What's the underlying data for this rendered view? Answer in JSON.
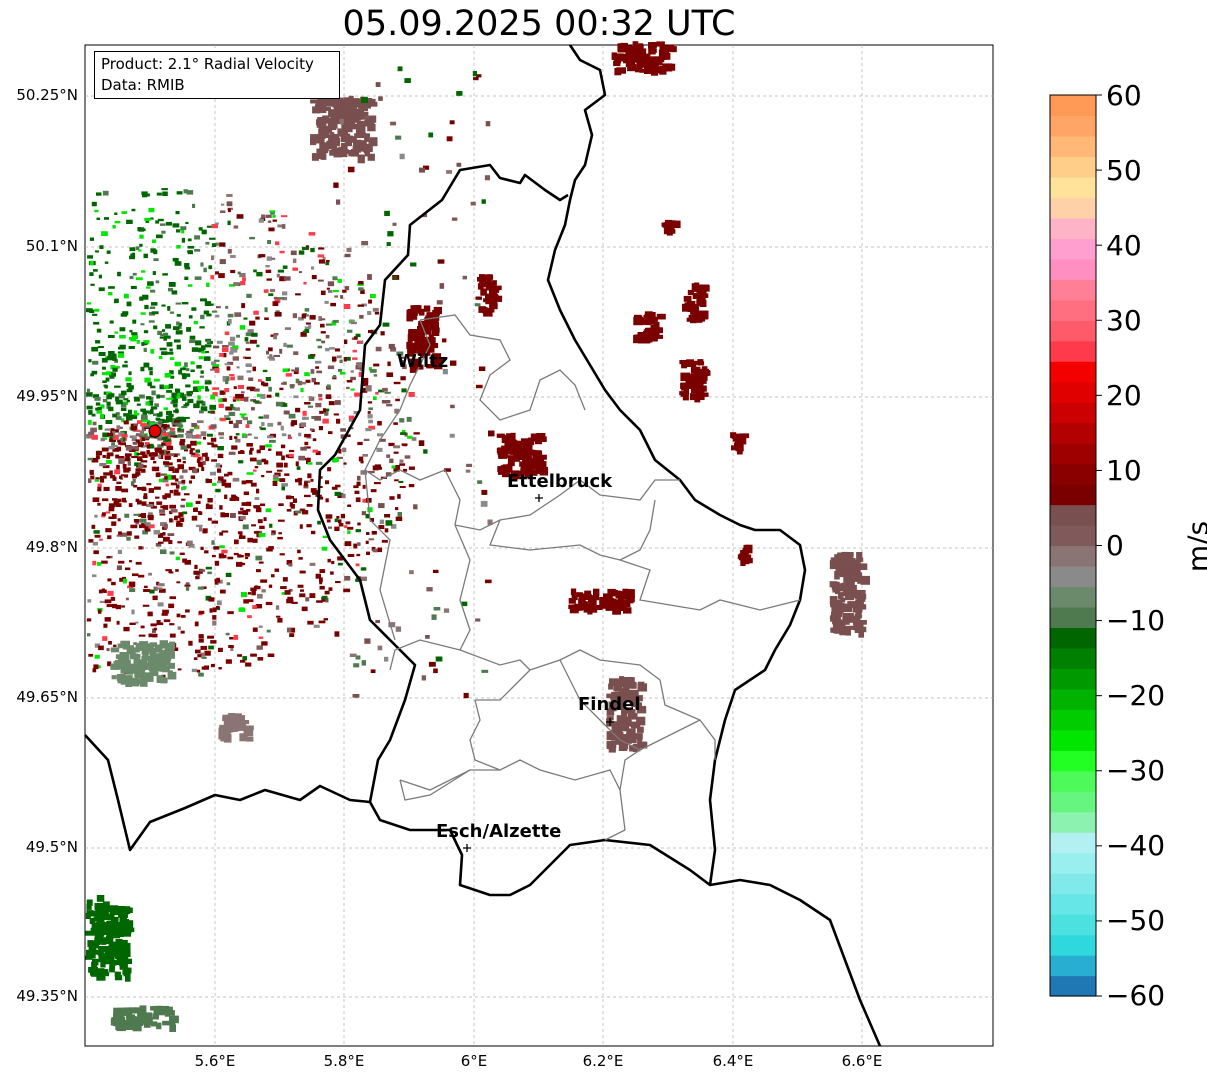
{
  "title": "05.09.2025 00:32 UTC",
  "info": {
    "product": "Product: 2.1° Radial Velocity",
    "source": "Data: RMIB"
  },
  "lat_ticks": [
    "50.25°N",
    "50.1°N",
    "49.95°N",
    "49.8°N",
    "49.65°N",
    "49.5°N",
    "49.35°N"
  ],
  "lon_ticks": [
    "5.6°E",
    "5.8°E",
    "6°E",
    "6.2°E",
    "6.4°E",
    "6.6°E"
  ],
  "cities": [
    {
      "name": "Wiltz",
      "marker": false
    },
    {
      "name": "Ettelbruck",
      "marker": true
    },
    {
      "name": "Findel",
      "marker": true
    },
    {
      "name": "Esch/Alzette",
      "marker": true
    }
  ],
  "colorbar": {
    "unit": "m/s",
    "ticks": [
      "60",
      "50",
      "40",
      "30",
      "20",
      "10",
      "0",
      "−10",
      "−20",
      "−30",
      "−40",
      "−50",
      "−60"
    ],
    "colors": [
      "#1f78b4",
      "#27aed0",
      "#2fd8dc",
      "#4de0e0",
      "#66e6e6",
      "#80eaea",
      "#99eeee",
      "#b3f0f2",
      "#8cf2b0",
      "#66f57e",
      "#4dfa59",
      "#22ff22",
      "#00e600",
      "#00cc00",
      "#00b300",
      "#009900",
      "#008000",
      "#006600",
      "#4f7a4f",
      "#6b8a6b",
      "#8a8a8a",
      "#8a7474",
      "#805a5a",
      "#7a4f4f",
      "#7a0000",
      "#8a0000",
      "#9e0000",
      "#b30000",
      "#cc0000",
      "#e00000",
      "#f50000",
      "#ff3a4a",
      "#ff5a6a",
      "#ff6f80",
      "#ff8096",
      "#ff8fc0",
      "#ff9fd0",
      "#ffb3c6",
      "#ffd1a8",
      "#ffe39a",
      "#ffce88",
      "#ffb877",
      "#ffa666",
      "#ff9955"
    ]
  },
  "legend_colors": {
    "inbound_strong": "#00e600",
    "inbound": "#006600",
    "zero": "#8a8a8a",
    "outbound": "#7a0000",
    "outbound_strong": "#ff3a4a"
  }
}
